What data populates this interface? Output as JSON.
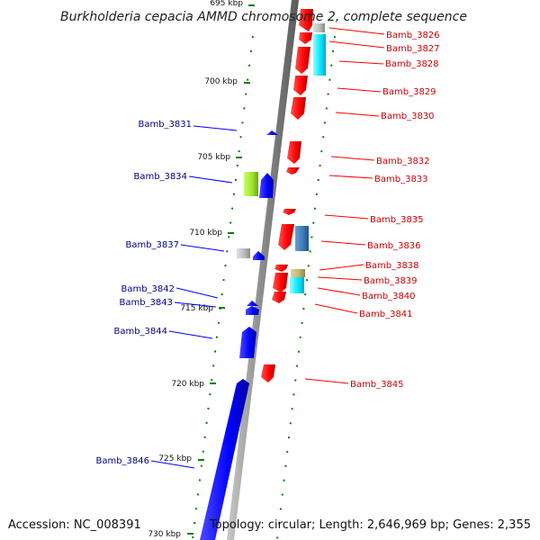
{
  "title": "Burkholderia cepacia AMMD chromosome 2, complete sequence",
  "accession": "Accession: NC_008391",
  "topology": "Topology: circular; Length: 2,646,969 bp; Genes: 2,355",
  "colors": {
    "forward": "#ff0000",
    "reverse": "#0000ff",
    "backbone": "#888888",
    "tick": "#008000",
    "forward_label": "#cc0000",
    "reverse_label": "#00008b"
  },
  "ticks": [
    {
      "label": "695 kbp",
      "kbp": 695
    },
    {
      "label": "700 kbp",
      "kbp": 700
    },
    {
      "label": "705 kbp",
      "kbp": 705
    },
    {
      "label": "710 kbp",
      "kbp": 710
    },
    {
      "label": "715 kbp",
      "kbp": 715
    },
    {
      "label": "720 kbp",
      "kbp": 720
    },
    {
      "label": "725 kbp",
      "kbp": 725
    },
    {
      "label": "730 kbp",
      "kbp": 730
    }
  ],
  "genes": [
    {
      "name": "Bamb_3826",
      "strand": "forward"
    },
    {
      "name": "Bamb_3827",
      "strand": "forward"
    },
    {
      "name": "Bamb_3828",
      "strand": "forward"
    },
    {
      "name": "Bamb_3829",
      "strand": "forward"
    },
    {
      "name": "Bamb_3830",
      "strand": "forward"
    },
    {
      "name": "Bamb_3831",
      "strand": "reverse"
    },
    {
      "name": "Bamb_3832",
      "strand": "forward"
    },
    {
      "name": "Bamb_3833",
      "strand": "forward"
    },
    {
      "name": "Bamb_3834",
      "strand": "reverse"
    },
    {
      "name": "Bamb_3835",
      "strand": "forward"
    },
    {
      "name": "Bamb_3836",
      "strand": "forward"
    },
    {
      "name": "Bamb_3837",
      "strand": "reverse"
    },
    {
      "name": "Bamb_3838",
      "strand": "forward"
    },
    {
      "name": "Bamb_3839",
      "strand": "forward"
    },
    {
      "name": "Bamb_3840",
      "strand": "forward"
    },
    {
      "name": "Bamb_3841",
      "strand": "forward"
    },
    {
      "name": "Bamb_3842",
      "strand": "reverse"
    },
    {
      "name": "Bamb_3843",
      "strand": "reverse"
    },
    {
      "name": "Bamb_3844",
      "strand": "reverse"
    },
    {
      "name": "Bamb_3845",
      "strand": "forward"
    },
    {
      "name": "Bamb_3846",
      "strand": "reverse"
    }
  ]
}
